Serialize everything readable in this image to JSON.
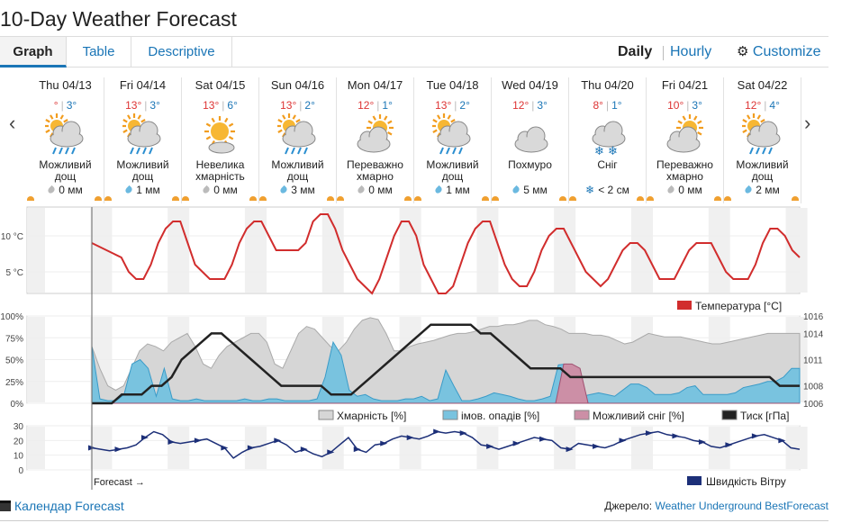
{
  "title": "10-Day Weather Forecast",
  "tabs": [
    {
      "label": "Graph",
      "active": true
    },
    {
      "label": "Table",
      "active": false
    },
    {
      "label": "Descriptive",
      "active": false
    }
  ],
  "view_toggle": {
    "daily": "Daily",
    "hourly": "Hourly",
    "customize": "Customize"
  },
  "nav": {
    "prev": "‹",
    "next": "›"
  },
  "days": [
    {
      "date": "Thu 04/13",
      "hi": "°",
      "lo": "3°",
      "icon": "rain-cloud-icon",
      "cond1": "Можливий",
      "cond2": "дощ",
      "precip": "0 мм",
      "precip_type": "drop-grey"
    },
    {
      "date": "Fri 04/14",
      "hi": "13°",
      "lo": "3°",
      "icon": "rain-cloud-icon",
      "cond1": "Можливий",
      "cond2": "дощ",
      "precip": "1 мм",
      "precip_type": "drop-blue"
    },
    {
      "date": "Sat 04/15",
      "hi": "13°",
      "lo": "6°",
      "icon": "sun-cloud-icon",
      "cond1": "Невелика",
      "cond2": "хмарність",
      "precip": "0 мм",
      "precip_type": "drop-grey"
    },
    {
      "date": "Sun 04/16",
      "hi": "13°",
      "lo": "2°",
      "icon": "rain-cloud-icon",
      "cond1": "Можливий",
      "cond2": "дощ",
      "precip": "3 мм",
      "precip_type": "drop-blue"
    },
    {
      "date": "Mon 04/17",
      "hi": "12°",
      "lo": "1°",
      "icon": "partly-cloudy-icon",
      "cond1": "Переважно",
      "cond2": "хмарно",
      "precip": "0 мм",
      "precip_type": "drop-grey"
    },
    {
      "date": "Tue 04/18",
      "hi": "13°",
      "lo": "2°",
      "icon": "rain-cloud-icon",
      "cond1": "Можливий",
      "cond2": "дощ",
      "precip": "1 мм",
      "precip_type": "drop-blue"
    },
    {
      "date": "Wed 04/19",
      "hi": "12°",
      "lo": "3°",
      "icon": "cloud-icon",
      "cond1": "Похмуро",
      "cond2": "",
      "precip": "5 мм",
      "precip_type": "drop-blue"
    },
    {
      "date": "Thu 04/20",
      "hi": "8°",
      "lo": "1°",
      "icon": "snow-cloud-icon",
      "cond1": "Сніг",
      "cond2": "",
      "precip": "< 2 см",
      "precip_type": "snowflake"
    },
    {
      "date": "Fri 04/21",
      "hi": "10°",
      "lo": "3°",
      "icon": "partly-cloudy-icon",
      "cond1": "Переважно",
      "cond2": "хмарно",
      "precip": "0 мм",
      "precip_type": "drop-grey"
    },
    {
      "date": "Sat 04/22",
      "hi": "12°",
      "lo": "4°",
      "icon": "rain-cloud-icon",
      "cond1": "Можливий",
      "cond2": "дощ",
      "precip": "2 мм",
      "precip_type": "drop-blue"
    }
  ],
  "chart": {
    "temp_ticks": [
      "10 °C",
      "5 °C"
    ],
    "pct_ticks": [
      "100%",
      "75%",
      "50%",
      "25%",
      "0%"
    ],
    "pressure_ticks": [
      "1016",
      "1014",
      "1011",
      "1008",
      "1006"
    ],
    "wind_ticks": [
      "30",
      "20",
      "10",
      "0"
    ],
    "legend_temp": "Температура [°C]",
    "legend_cloud": "Хмарність [%]",
    "legend_precip": "імов. опадів [%]",
    "legend_snow": "Можливий сніг [%]",
    "legend_pressure": "Тиск [гПа]",
    "legend_wind": "Швидкість Вітру",
    "forecast_label": "Forecast →",
    "colors": {
      "temp": "#d12d2d",
      "cloud": "#d6d6d6",
      "precip": "#79c3df",
      "snow": "#cc8fa6",
      "pressure": "#222222",
      "wind": "#1c2f78"
    }
  },
  "chart_data": {
    "type": "line",
    "temperature": [
      9,
      8.5,
      8,
      7.5,
      7,
      5,
      4,
      4,
      6,
      9,
      11,
      12,
      12,
      9,
      6,
      5,
      4,
      4,
      4,
      6,
      9,
      11,
      12,
      12,
      10,
      8,
      8,
      8,
      8,
      9,
      12,
      13,
      13,
      11,
      8,
      6,
      4,
      3,
      2,
      4,
      7,
      10,
      12,
      12,
      10,
      6,
      4,
      2,
      2,
      3,
      6,
      9,
      11,
      12,
      12,
      9,
      6,
      4,
      3,
      3,
      5,
      8,
      10,
      11,
      11,
      9,
      7,
      5,
      4,
      3,
      4,
      6,
      8,
      9,
      9,
      8,
      6,
      4,
      4,
      4,
      6,
      8,
      9,
      9,
      9,
      7,
      5,
      4,
      4,
      4,
      6,
      9,
      11,
      11,
      10,
      8,
      7
    ],
    "cloud_cover": [
      65,
      40,
      20,
      15,
      20,
      40,
      60,
      68,
      65,
      60,
      70,
      75,
      80,
      65,
      45,
      40,
      55,
      65,
      70,
      75,
      80,
      80,
      70,
      45,
      40,
      60,
      80,
      88,
      85,
      75,
      65,
      60,
      70,
      85,
      95,
      98,
      96,
      80,
      60,
      60,
      65,
      68,
      70,
      72,
      75,
      78,
      80,
      80,
      82,
      85,
      88,
      88,
      90,
      90,
      92,
      95,
      95,
      90,
      88,
      85,
      80,
      80,
      80,
      78,
      78,
      76,
      72,
      68,
      70,
      75,
      80,
      78,
      76,
      76,
      76,
      74,
      72,
      70,
      68,
      68,
      70,
      72,
      74,
      76,
      78,
      80,
      80,
      80,
      80,
      80
    ],
    "precip_prob": [
      65,
      5,
      3,
      3,
      10,
      45,
      50,
      40,
      8,
      40,
      5,
      3,
      3,
      5,
      3,
      3,
      3,
      3,
      3,
      5,
      3,
      3,
      5,
      5,
      3,
      3,
      3,
      3,
      5,
      30,
      70,
      55,
      15,
      8,
      10,
      5,
      3,
      3,
      3,
      5,
      5,
      8,
      3,
      5,
      38,
      20,
      3,
      3,
      5,
      8,
      12,
      10,
      8,
      5,
      3,
      3,
      5,
      8,
      44,
      45,
      38,
      8,
      10,
      12,
      10,
      8,
      15,
      22,
      22,
      18,
      10,
      10,
      10,
      12,
      18,
      20,
      10,
      10,
      10,
      10,
      12,
      18,
      20,
      22,
      25,
      25,
      30,
      40,
      40
    ],
    "snow_prob": [
      0,
      0,
      0,
      0,
      0,
      0,
      0,
      0,
      0,
      0,
      0,
      0,
      0,
      0,
      0,
      0,
      0,
      0,
      0,
      0,
      0,
      0,
      0,
      0,
      0,
      0,
      0,
      0,
      0,
      0,
      0,
      0,
      0,
      0,
      0,
      0,
      0,
      0,
      0,
      0,
      0,
      0,
      0,
      0,
      0,
      0,
      0,
      0,
      0,
      0,
      0,
      0,
      0,
      0,
      0,
      0,
      0,
      0,
      45,
      45,
      40,
      0,
      0,
      0,
      0,
      0,
      0,
      0,
      0,
      0,
      0,
      0,
      0,
      0,
      0,
      0,
      0,
      0,
      0,
      0,
      0,
      0,
      0,
      0,
      0,
      0,
      0,
      0
    ],
    "pressure": [
      1006,
      1006,
      1006,
      1007,
      1007,
      1007,
      1008,
      1008,
      1009,
      1011,
      1012,
      1013,
      1014,
      1014,
      1013,
      1012,
      1011,
      1010,
      1009,
      1008,
      1008,
      1008,
      1008,
      1008,
      1007,
      1007,
      1007,
      1008,
      1009,
      1010,
      1011,
      1012,
      1013,
      1014,
      1015,
      1015,
      1015,
      1015,
      1015,
      1014,
      1014,
      1013,
      1012,
      1011,
      1010,
      1010,
      1010,
      1010,
      1009,
      1009,
      1009,
      1009,
      1009,
      1009,
      1009,
      1009,
      1009,
      1009,
      1009,
      1009,
      1009,
      1009,
      1009,
      1009,
      1009,
      1009,
      1009,
      1009,
      1009,
      1008,
      1008,
      1008
    ],
    "wind_speed": [
      15,
      14,
      13,
      14,
      15,
      17,
      22,
      26,
      24,
      19,
      18,
      19,
      20,
      21,
      18,
      15,
      8,
      12,
      15,
      16,
      18,
      20,
      17,
      12,
      14,
      11,
      9,
      12,
      17,
      22,
      14,
      12,
      17,
      18,
      21,
      23,
      22,
      21,
      23,
      26,
      25,
      26,
      25,
      22,
      17,
      16,
      14,
      16,
      18,
      20,
      22,
      21,
      20,
      15,
      14,
      18,
      17,
      16,
      15,
      17,
      20,
      22,
      24,
      25,
      26,
      24,
      23,
      22,
      20,
      19,
      16,
      15,
      17,
      19,
      21,
      23,
      24,
      22,
      20,
      15,
      14
    ]
  }
}
